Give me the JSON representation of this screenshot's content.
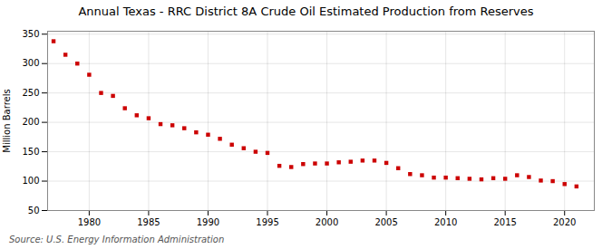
{
  "chart_data": {
    "type": "scatter",
    "title": "Annual Texas - RRC District 8A Crude Oil Estimated Production from Reserves",
    "ylabel": "Million Barrels",
    "source": "Source: U.S. Energy Information Administration",
    "x": [
      1977,
      1978,
      1979,
      1980,
      1981,
      1982,
      1983,
      1984,
      1985,
      1986,
      1987,
      1988,
      1989,
      1990,
      1991,
      1992,
      1993,
      1994,
      1995,
      1996,
      1997,
      1998,
      1999,
      2000,
      2001,
      2002,
      2003,
      2004,
      2005,
      2006,
      2007,
      2008,
      2009,
      2010,
      2011,
      2012,
      2013,
      2014,
      2015,
      2016,
      2017,
      2018,
      2019,
      2020,
      2021
    ],
    "values": [
      338,
      315,
      300,
      281,
      250,
      245,
      224,
      212,
      207,
      197,
      195,
      190,
      183,
      179,
      172,
      162,
      156,
      150,
      148,
      126,
      124,
      129,
      130,
      130,
      132,
      133,
      135,
      135,
      131,
      122,
      112,
      110,
      106,
      106,
      105,
      104,
      103,
      105,
      104,
      110,
      107,
      101,
      100,
      95,
      91
    ],
    "color": "#cc0000",
    "marker": "square",
    "xlim": [
      1976.5,
      2022.5
    ],
    "ylim": [
      50,
      355
    ],
    "xticks": [
      1980,
      1985,
      1990,
      1995,
      2000,
      2005,
      2010,
      2015,
      2020
    ],
    "yticks": [
      50,
      100,
      150,
      200,
      250,
      300,
      350
    ],
    "grid": true
  }
}
